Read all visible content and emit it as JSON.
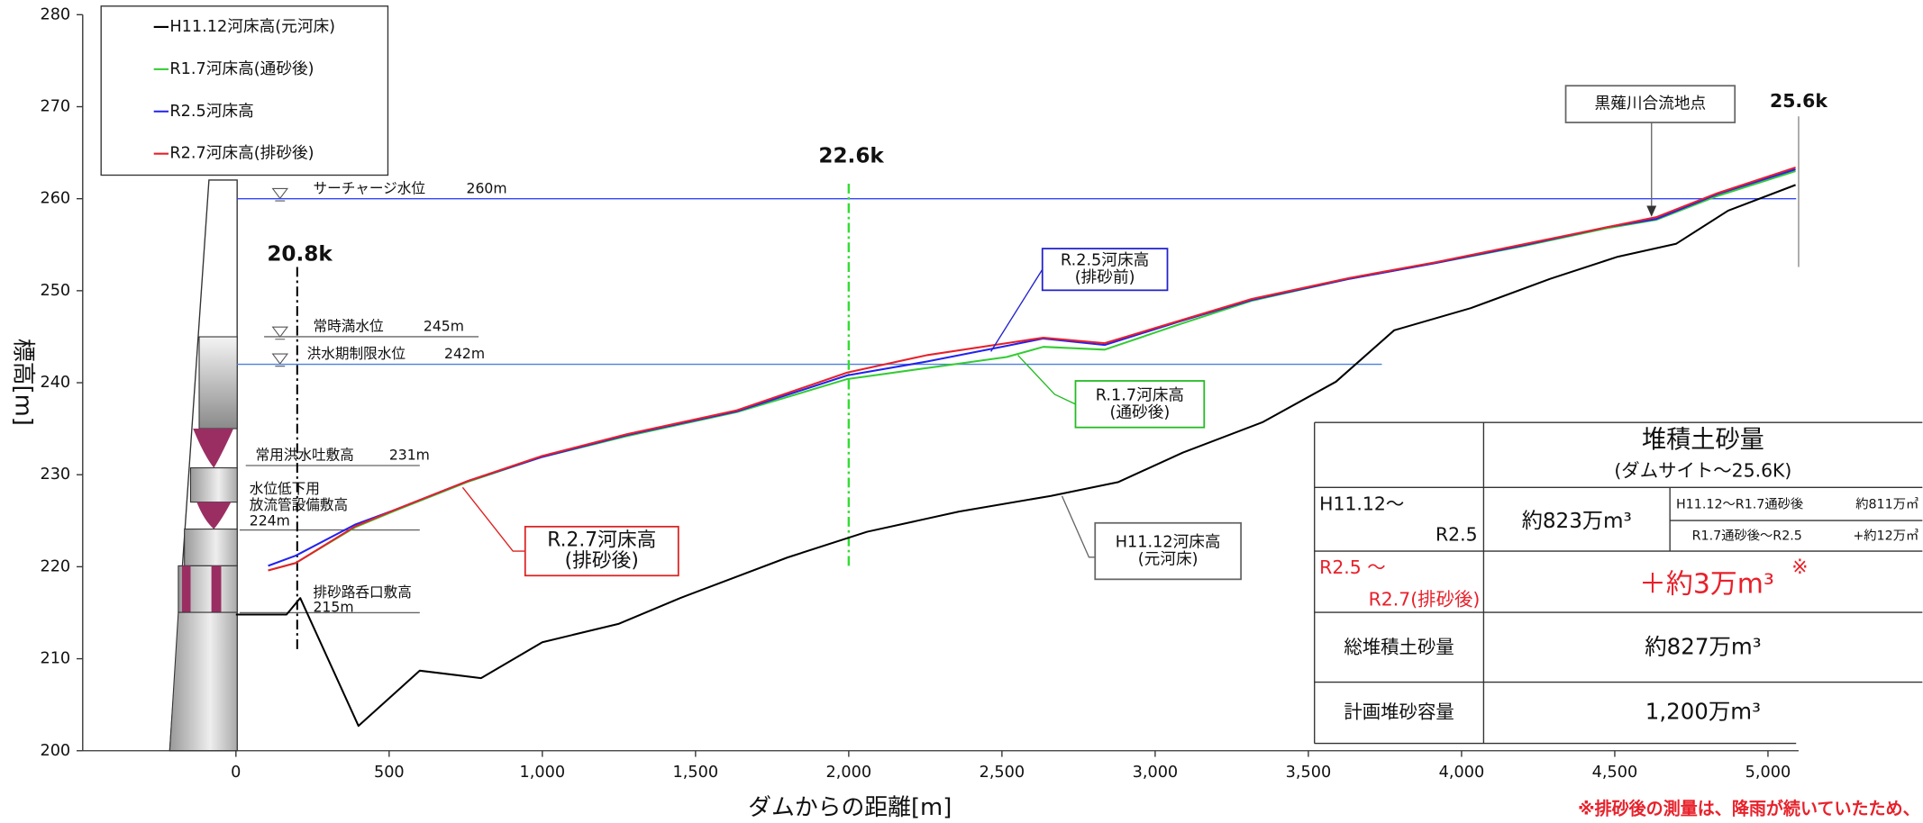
{
  "chart_data": {
    "type": "line",
    "x_label": "ダムからの距離[m]",
    "y_label": "標高[m]",
    "xlim": [
      -500,
      5100
    ],
    "ylim": [
      200,
      280
    ],
    "xticks": [
      0,
      500,
      {
        "value": 1000,
        "label": "1,000"
      },
      {
        "value": 1500,
        "label": "1,500"
      },
      {
        "value": 2000,
        "label": "2,000"
      },
      {
        "value": 2500,
        "label": "2,500"
      },
      {
        "value": 3000,
        "label": "3,000"
      },
      {
        "value": 3500,
        "label": "3,500"
      },
      {
        "value": 4000,
        "label": "4,000"
      },
      {
        "value": 4500,
        "label": "4,500"
      },
      {
        "value": 5000,
        "label": "5,000"
      }
    ],
    "yticks": [
      200,
      210,
      220,
      230,
      240,
      250,
      260,
      270,
      280
    ],
    "series": [
      {
        "name": "H11.12河床高(元河床)",
        "color": "#000000",
        "x": [
          0,
          165,
          210,
          400,
          600,
          800,
          1000,
          1250,
          1450,
          1800,
          2060,
          2360,
          2660,
          2880,
          3090,
          3350,
          3590,
          3780,
          4030,
          4290,
          4510,
          4700,
          4870,
          5090
        ],
        "values": [
          214.8,
          214.8,
          216.6,
          202.7,
          208.7,
          207.9,
          211.8,
          213.8,
          216.6,
          221,
          223.8,
          226,
          227.7,
          229.2,
          232.4,
          235.7,
          240.1,
          245.7,
          248.1,
          251.3,
          253.7,
          255.1,
          258.7,
          261.5
        ]
      },
      {
        "name": "R1.7河床高(通砂後)",
        "color": "#33cc33",
        "x": [
          105,
          195,
          390,
          520,
          755,
          995,
          1275,
          1635,
          1995,
          2255,
          2515,
          2635,
          2835,
          3075,
          3315,
          3635,
          3915,
          4195,
          4475,
          4635,
          4835,
          5090
        ],
        "values": [
          219.6,
          220.4,
          224.3,
          226.1,
          229.2,
          231.9,
          234.2,
          236.8,
          240.4,
          241.6,
          242.8,
          243.9,
          243.6,
          246.3,
          248.9,
          251.3,
          253,
          254.8,
          256.8,
          257.7,
          260.3,
          263
        ]
      },
      {
        "name": "R2.5河床高",
        "color": "#2222ee",
        "x": [
          105,
          195,
          390,
          520,
          755,
          995,
          1275,
          1635,
          1995,
          2255,
          2515,
          2635,
          2835,
          3075,
          3315,
          3635,
          3915,
          4195,
          4475,
          4635,
          4835,
          5090
        ],
        "values": [
          220.1,
          221.2,
          224.6,
          226.2,
          229.3,
          231.9,
          234.3,
          236.9,
          240.8,
          242.3,
          244,
          244.8,
          244.1,
          246.6,
          249,
          251.3,
          253,
          254.9,
          256.9,
          257.8,
          260.5,
          263.2
        ]
      },
      {
        "name": "R2.7河床高(排砂後)",
        "color": "#e8202a",
        "x": [
          105,
          195,
          390,
          520,
          755,
          995,
          1275,
          1635,
          1995,
          2255,
          2515,
          2635,
          2835,
          3075,
          3315,
          3635,
          3915,
          4195,
          4475,
          4635,
          4835,
          5090
        ],
        "values": [
          219.6,
          220.4,
          224.4,
          226.2,
          229.3,
          232,
          234.4,
          237,
          241.1,
          243,
          244.3,
          244.9,
          244.3,
          246.7,
          249.1,
          251.4,
          253.1,
          255,
          256.9,
          258,
          260.6,
          263.4
        ]
      }
    ],
    "reference_lines": [
      {
        "name": "サーチャージ水位",
        "value": 260,
        "label": "260m",
        "color": "#3344ff"
      },
      {
        "name": "常時満水位",
        "value": 245,
        "label": "245m",
        "color": "#666666"
      },
      {
        "name": "洪水期制限水位",
        "value": 242,
        "label": "242m",
        "color": "#4a80e0"
      },
      {
        "name": "常用洪水吐敷高",
        "value": 231,
        "label": "231m",
        "color": "#666666"
      },
      {
        "name": [
          "水位低下用",
          "放流管設備敷高"
        ],
        "value": 224,
        "label": "224m",
        "color": "#666666"
      },
      {
        "name": "排砂路呑口敷高",
        "value": 215,
        "label": "215m",
        "color": "#666666"
      }
    ],
    "markers": [
      {
        "label": "20.8k",
        "x": 200,
        "color": "#000000"
      },
      {
        "label": "22.6k",
        "x": 2000,
        "color": "#33dd33"
      },
      {
        "label": "25.6k",
        "x": 5100,
        "color": "#888888"
      }
    ],
    "annotations": [
      {
        "lines": [
          "R.2.5河床高",
          "(排砂前)"
        ],
        "color": "#2222cc"
      },
      {
        "lines": [
          "R.1.7河床高",
          "(通砂後)"
        ],
        "color": "#22bb22"
      },
      {
        "lines": [
          "R.2.7河床高",
          "(排砂後)"
        ],
        "color": "#dd2222"
      },
      {
        "lines": [
          "H11.12河床高",
          "(元河床)"
        ],
        "color": "#666666"
      },
      {
        "lines": [
          "黒薙川合流地点"
        ],
        "color": "#666666"
      }
    ]
  },
  "table": {
    "title": "堆積土砂量",
    "subtitle": "(ダムサイト～25.6K)",
    "rows": [
      {
        "label": [
          "H11.12～",
          "R2.5"
        ],
        "value": "約823万m³",
        "details": [
          [
            "H11.12～R1.7通砂後",
            "約811万㎥"
          ],
          [
            "R1.7通砂後～R2.5",
            "+約12万㎥"
          ]
        ]
      },
      {
        "label": [
          "R2.5 ～",
          "R2.7(排砂後)"
        ],
        "value": "＋約3万m³",
        "mark": "※"
      },
      {
        "label": [
          "総堆積土砂量"
        ],
        "value": "約827万m³"
      },
      {
        "label": [
          "計画堆砂容量"
        ],
        "value": "1,200万m³"
      }
    ],
    "footnote": "※排砂後の測量は、降雨が続いていたため、"
  }
}
